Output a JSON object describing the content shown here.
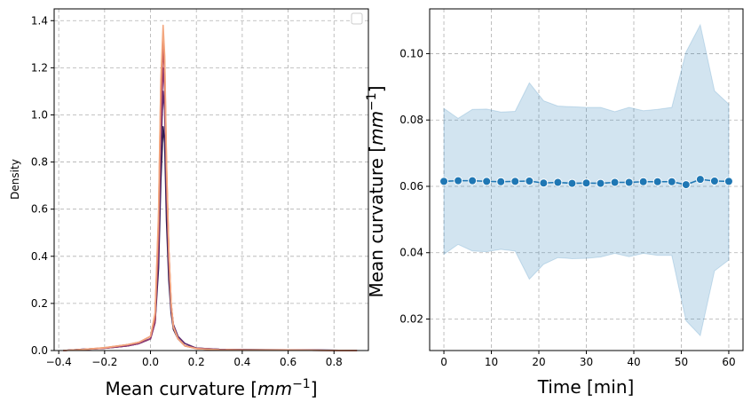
{
  "chart_data": [
    {
      "type": "line",
      "subtype": "kde",
      "xlabel": "Mean curvature [mm⁻¹]",
      "ylabel": "Density",
      "xlim": [
        -0.42,
        0.95
      ],
      "ylim": [
        0,
        1.45
      ],
      "xticks": [
        -0.4,
        -0.2,
        0.0,
        0.2,
        0.4,
        0.6,
        0.8
      ],
      "xtick_labels": [
        "−0.4",
        "−0.2",
        "0.0",
        "0.2",
        "0.4",
        "0.6",
        "0.8"
      ],
      "yticks": [
        0.0,
        0.2,
        0.4,
        0.6,
        0.8,
        1.0,
        1.2,
        1.4
      ],
      "ytick_labels": [
        "0.0",
        "0.2",
        "0.4",
        "0.6",
        "0.8",
        "1.0",
        "1.2",
        "1.4"
      ],
      "grid": true,
      "legend": "top-right (empty)",
      "x": [
        -0.38,
        -0.3,
        -0.2,
        -0.1,
        -0.05,
        0.0,
        0.02,
        0.035,
        0.045,
        0.055,
        0.062,
        0.07,
        0.08,
        0.09,
        0.1,
        0.12,
        0.15,
        0.2,
        0.3,
        0.5,
        0.7,
        0.9
      ],
      "series": [
        {
          "color": "#2d1b4e",
          "values": [
            0.0,
            0.005,
            0.01,
            0.02,
            0.03,
            0.05,
            0.12,
            0.35,
            0.72,
            0.95,
            0.88,
            0.55,
            0.3,
            0.16,
            0.09,
            0.05,
            0.02,
            0.01,
            0.005,
            0.003,
            0.002,
            0.0
          ]
        },
        {
          "color": "#5e2a6e",
          "values": [
            0.0,
            0.005,
            0.01,
            0.02,
            0.03,
            0.05,
            0.12,
            0.4,
            0.85,
            1.1,
            1.02,
            0.66,
            0.36,
            0.19,
            0.11,
            0.06,
            0.03,
            0.01,
            0.005,
            0.003,
            0.002,
            0.0
          ]
        },
        {
          "color": "#8e3b74",
          "values": [
            0.0,
            0.004,
            0.01,
            0.02,
            0.03,
            0.05,
            0.12,
            0.45,
            0.95,
            1.2,
            1.1,
            0.7,
            0.38,
            0.18,
            0.1,
            0.05,
            0.02,
            0.01,
            0.004,
            0.002,
            0.001,
            0.0
          ]
        },
        {
          "color": "#c0505a",
          "values": [
            0.0,
            0.004,
            0.01,
            0.025,
            0.035,
            0.06,
            0.14,
            0.5,
            1.05,
            1.28,
            1.18,
            0.75,
            0.42,
            0.2,
            0.1,
            0.05,
            0.02,
            0.008,
            0.003,
            0.002,
            0.001,
            0.0
          ]
        },
        {
          "color": "#e47a5a",
          "values": [
            0.0,
            0.004,
            0.012,
            0.025,
            0.035,
            0.06,
            0.15,
            0.55,
            1.12,
            1.34,
            1.22,
            0.78,
            0.42,
            0.2,
            0.1,
            0.05,
            0.02,
            0.008,
            0.003,
            0.002,
            0.001,
            0.0
          ]
        },
        {
          "color": "#f3a77f",
          "values": [
            0.0,
            0.004,
            0.012,
            0.025,
            0.035,
            0.06,
            0.16,
            0.58,
            1.15,
            1.38,
            1.25,
            0.8,
            0.43,
            0.2,
            0.1,
            0.05,
            0.02,
            0.008,
            0.003,
            0.002,
            0.001,
            0.0
          ]
        }
      ]
    },
    {
      "type": "line",
      "subtype": "line with confidence band",
      "xlabel": "Time [min]",
      "ylabel": "Mean curvature [mm⁻¹]",
      "xlim": [
        -3,
        63
      ],
      "ylim": [
        0.0105,
        0.1135
      ],
      "xticks": [
        0,
        10,
        20,
        30,
        40,
        50,
        60
      ],
      "xtick_labels": [
        "0",
        "10",
        "20",
        "30",
        "40",
        "50",
        "60"
      ],
      "yticks": [
        0.02,
        0.04,
        0.06,
        0.08,
        0.1
      ],
      "ytick_labels": [
        "0.02",
        "0.04",
        "0.06",
        "0.08",
        "0.10"
      ],
      "grid": true,
      "colors": {
        "line": "#1f77b4",
        "band": "#1f77b4"
      },
      "x": [
        0,
        3,
        6,
        9,
        12,
        15,
        18,
        21,
        24,
        27,
        30,
        33,
        36,
        39,
        42,
        45,
        48,
        51,
        54,
        57,
        60
      ],
      "values": [
        0.0615,
        0.0617,
        0.0617,
        0.0615,
        0.0614,
        0.0615,
        0.0616,
        0.061,
        0.0612,
        0.0609,
        0.061,
        0.0609,
        0.0612,
        0.0612,
        0.0614,
        0.0614,
        0.0614,
        0.0605,
        0.0621,
        0.0616,
        0.0615
      ],
      "upper": [
        0.0835,
        0.0805,
        0.0832,
        0.0833,
        0.0824,
        0.0826,
        0.0912,
        0.0858,
        0.0842,
        0.084,
        0.0838,
        0.0838,
        0.0825,
        0.0838,
        0.0828,
        0.0832,
        0.0838,
        0.1005,
        0.1087,
        0.0888,
        0.0848
      ],
      "lower": [
        0.0395,
        0.0425,
        0.0405,
        0.0403,
        0.041,
        0.0405,
        0.032,
        0.0365,
        0.0385,
        0.0382,
        0.0383,
        0.0387,
        0.0398,
        0.0388,
        0.0398,
        0.0392,
        0.0392,
        0.0195,
        0.015,
        0.0345,
        0.0378
      ]
    }
  ]
}
